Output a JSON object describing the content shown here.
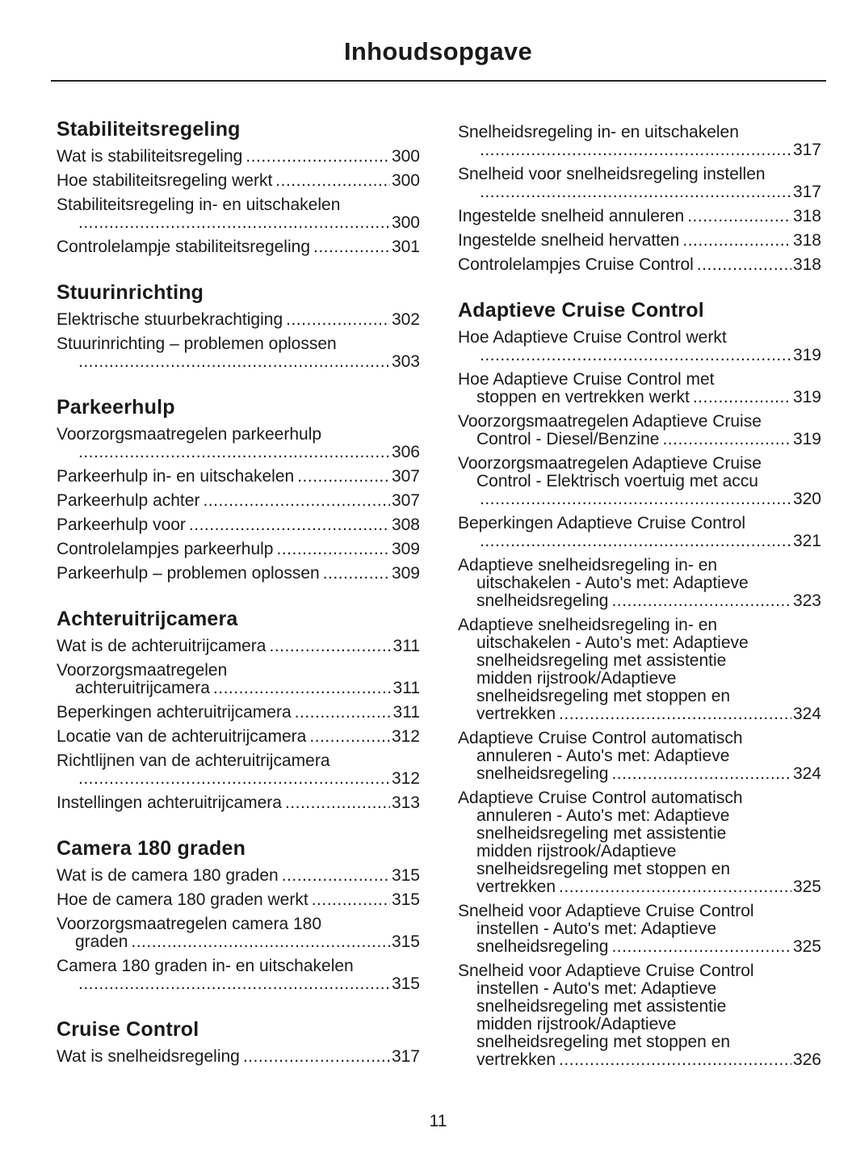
{
  "title": "Inhoudsopgave",
  "page_number": "11",
  "columns": [
    [
      {
        "heading": "Stabiliteitsregeling",
        "entries": [
          {
            "lines": [
              "Wat is stabiliteitsregeling"
            ],
            "page": "300"
          },
          {
            "lines": [
              "Hoe stabiliteitsregeling werkt"
            ],
            "page": "300"
          },
          {
            "lines": [
              "Stabiliteitsregeling in- en uitschakelen",
              ""
            ],
            "page": "300"
          },
          {
            "lines": [
              "Controlelampje stabiliteitsregeling"
            ],
            "page": "301"
          }
        ]
      },
      {
        "heading": "Stuurinrichting",
        "entries": [
          {
            "lines": [
              "Elektrische stuurbekrachtiging"
            ],
            "page": "302"
          },
          {
            "lines": [
              "Stuurinrichting – problemen oplossen",
              ""
            ],
            "page": "303"
          }
        ]
      },
      {
        "heading": "Parkeerhulp",
        "entries": [
          {
            "lines": [
              "Voorzorgsmaatregelen parkeerhulp",
              ""
            ],
            "page": "306"
          },
          {
            "lines": [
              "Parkeerhulp in- en uitschakelen"
            ],
            "page": "307"
          },
          {
            "lines": [
              "Parkeerhulp achter"
            ],
            "page": "307"
          },
          {
            "lines": [
              "Parkeerhulp voor"
            ],
            "page": "308"
          },
          {
            "lines": [
              "Controlelampjes parkeerhulp"
            ],
            "page": "309"
          },
          {
            "lines": [
              "Parkeerhulp – problemen oplossen"
            ],
            "page": "309"
          }
        ]
      },
      {
        "heading": "Achteruitrijcamera",
        "entries": [
          {
            "lines": [
              "Wat is de achteruitrijcamera"
            ],
            "page": "311"
          },
          {
            "lines": [
              "Voorzorgsmaatregelen",
              "achteruitrijcamera"
            ],
            "page": "311"
          },
          {
            "lines": [
              "Beperkingen achteruitrijcamera"
            ],
            "page": "311"
          },
          {
            "lines": [
              "Locatie van de achteruitrijcamera"
            ],
            "page": "312"
          },
          {
            "lines": [
              "Richtlijnen van de achteruitrijcamera",
              ""
            ],
            "page": "312"
          },
          {
            "lines": [
              "Instellingen achteruitrijcamera"
            ],
            "page": "313"
          }
        ]
      },
      {
        "heading": "Camera 180 graden",
        "entries": [
          {
            "lines": [
              "Wat is de camera 180 graden"
            ],
            "page": "315"
          },
          {
            "lines": [
              "Hoe de camera 180 graden werkt"
            ],
            "page": "315"
          },
          {
            "lines": [
              "Voorzorgsmaatregelen camera 180",
              "graden"
            ],
            "page": "315"
          },
          {
            "lines": [
              "Camera 180 graden in- en uitschakelen",
              ""
            ],
            "page": "315"
          }
        ]
      },
      {
        "heading": "Cruise Control",
        "entries": [
          {
            "lines": [
              "Wat is snelheidsregeling"
            ],
            "page": "317"
          }
        ]
      }
    ],
    [
      {
        "heading": "",
        "entries": [
          {
            "lines": [
              "Snelheidsregeling in- en uitschakelen",
              ""
            ],
            "page": "317"
          },
          {
            "lines": [
              "Snelheid voor snelheidsregeling instellen",
              ""
            ],
            "page": "317"
          },
          {
            "lines": [
              "Ingestelde snelheid annuleren"
            ],
            "page": "318"
          },
          {
            "lines": [
              "Ingestelde snelheid hervatten"
            ],
            "page": "318"
          },
          {
            "lines": [
              "Controlelampjes Cruise Control"
            ],
            "page": "318"
          }
        ]
      },
      {
        "heading": "Adaptieve Cruise Control",
        "entries": [
          {
            "lines": [
              "Hoe Adaptieve Cruise Control werkt",
              ""
            ],
            "page": "319"
          },
          {
            "lines": [
              "Hoe Adaptieve Cruise Control met",
              "stoppen en vertrekken werkt"
            ],
            "page": "319"
          },
          {
            "lines": [
              "Voorzorgsmaatregelen Adaptieve Cruise",
              "Control - Diesel/Benzine"
            ],
            "page": "319"
          },
          {
            "lines": [
              "Voorzorgsmaatregelen Adaptieve Cruise",
              "Control - Elektrisch voertuig met accu",
              ""
            ],
            "page": "320"
          },
          {
            "lines": [
              "Beperkingen Adaptieve Cruise Control",
              ""
            ],
            "page": "321"
          },
          {
            "lines": [
              "Adaptieve snelheidsregeling in- en",
              "uitschakelen - Auto's met: Adaptieve",
              "snelheidsregeling"
            ],
            "page": "323"
          },
          {
            "lines": [
              "Adaptieve snelheidsregeling in- en",
              "uitschakelen - Auto's met: Adaptieve",
              "snelheidsregeling met assistentie",
              "midden rijstrook/Adaptieve",
              "snelheidsregeling met stoppen en",
              "vertrekken"
            ],
            "page": "324"
          },
          {
            "lines": [
              "Adaptieve Cruise Control automatisch",
              "annuleren - Auto's met: Adaptieve",
              "snelheidsregeling"
            ],
            "page": "324"
          },
          {
            "lines": [
              "Adaptieve Cruise Control automatisch",
              "annuleren - Auto's met: Adaptieve",
              "snelheidsregeling met assistentie",
              "midden rijstrook/Adaptieve",
              "snelheidsregeling met stoppen en",
              "vertrekken"
            ],
            "page": "325"
          },
          {
            "lines": [
              "Snelheid voor Adaptieve Cruise Control",
              "instellen - Auto's met: Adaptieve",
              "snelheidsregeling"
            ],
            "page": "325"
          },
          {
            "lines": [
              "Snelheid voor Adaptieve Cruise Control",
              "instellen - Auto's met: Adaptieve",
              "snelheidsregeling met assistentie",
              "midden rijstrook/Adaptieve",
              "snelheidsregeling met stoppen en",
              "vertrekken"
            ],
            "page": "326"
          }
        ]
      }
    ]
  ]
}
